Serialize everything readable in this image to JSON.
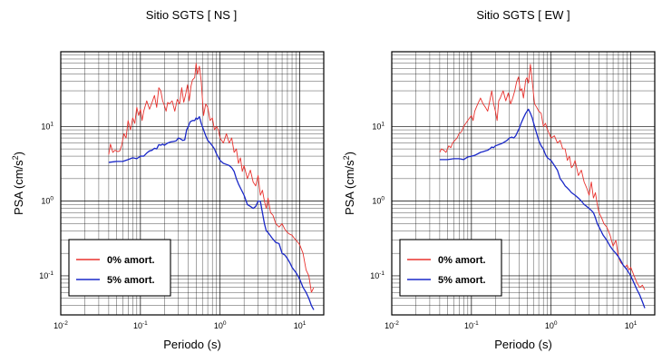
{
  "chart_data": [
    {
      "type": "line",
      "title": "Sitio SGTS [ NS ]",
      "xlabel": "Periodo (s)",
      "ylabel": "PSA (cm/s",
      "ylabel_sup": "2",
      "ylabel_end": ")",
      "xscale": "log",
      "yscale": "log",
      "xlim": [
        0.01,
        20
      ],
      "ylim": [
        0.03,
        100
      ],
      "grid": true,
      "legend_position": "bottom-left",
      "x_ticks": [
        {
          "base": "10",
          "exp": "-2",
          "value": 0.01
        },
        {
          "base": "10",
          "exp": "-1",
          "value": 0.1
        },
        {
          "base": "10",
          "exp": "0",
          "value": 1
        },
        {
          "base": "10",
          "exp": "1",
          "value": 10
        }
      ],
      "y_ticks": [
        {
          "base": "10",
          "exp": "-1",
          "value": 0.1
        },
        {
          "base": "10",
          "exp": "0",
          "value": 1
        },
        {
          "base": "10",
          "exp": "1",
          "value": 10
        }
      ],
      "series": [
        {
          "name": "0% amort.",
          "color": "#e8322e",
          "x": [
            0.04,
            0.042,
            0.045,
            0.048,
            0.052,
            0.055,
            0.058,
            0.062,
            0.066,
            0.07,
            0.075,
            0.08,
            0.085,
            0.09,
            0.095,
            0.1,
            0.105,
            0.11,
            0.12,
            0.13,
            0.14,
            0.15,
            0.16,
            0.17,
            0.18,
            0.19,
            0.2,
            0.21,
            0.22,
            0.23,
            0.25,
            0.27,
            0.29,
            0.31,
            0.33,
            0.35,
            0.37,
            0.39,
            0.41,
            0.43,
            0.45,
            0.48,
            0.5,
            0.52,
            0.55,
            0.58,
            0.62,
            0.66,
            0.7,
            0.75,
            0.8,
            0.85,
            0.9,
            0.95,
            1.0,
            1.1,
            1.2,
            1.3,
            1.4,
            1.5,
            1.6,
            1.7,
            1.8,
            1.9,
            2.0,
            2.2,
            2.4,
            2.6,
            2.8,
            3.0,
            3.2,
            3.4,
            3.6,
            3.8,
            4.0,
            4.3,
            4.6,
            5.0,
            5.5,
            6.0,
            6.5,
            7.0,
            7.5,
            8.0,
            8.5,
            9.0,
            9.5,
            10.0,
            11.0,
            12.0,
            13.0,
            14.0,
            15.0
          ],
          "y": [
            4.2,
            5.8,
            4.5,
            4.8,
            4.6,
            4.7,
            5.5,
            8.0,
            7.0,
            12.0,
            9.0,
            13.0,
            11.0,
            18.0,
            14.0,
            17.0,
            12.0,
            16.0,
            22.0,
            17.0,
            21.0,
            26.0,
            18.0,
            33.0,
            30.0,
            22.0,
            19.0,
            16.0,
            21.0,
            20.0,
            22.0,
            16.0,
            23.0,
            20.0,
            33.0,
            21.0,
            27.0,
            36.0,
            22.0,
            34.0,
            42.0,
            45.0,
            70.0,
            50.0,
            64.0,
            40.0,
            14.0,
            20.0,
            18.0,
            12.0,
            13.0,
            9.0,
            10.0,
            9.0,
            7.0,
            6.0,
            8.0,
            6.0,
            7.0,
            4.5,
            5.0,
            3.2,
            3.8,
            2.5,
            3.0,
            2.0,
            2.6,
            1.8,
            1.6,
            2.2,
            1.2,
            1.4,
            1.0,
            0.8,
            1.1,
            0.7,
            0.65,
            0.5,
            0.45,
            0.5,
            0.42,
            0.38,
            0.36,
            0.35,
            0.32,
            0.3,
            0.28,
            0.26,
            0.2,
            0.12,
            0.1,
            0.06,
            0.07
          ]
        },
        {
          "name": "5% amort.",
          "color": "#1a28c8",
          "x": [
            0.04,
            0.05,
            0.06,
            0.07,
            0.08,
            0.09,
            0.1,
            0.11,
            0.12,
            0.13,
            0.14,
            0.15,
            0.16,
            0.17,
            0.18,
            0.19,
            0.2,
            0.22,
            0.24,
            0.26,
            0.28,
            0.3,
            0.32,
            0.34,
            0.36,
            0.38,
            0.4,
            0.42,
            0.45,
            0.48,
            0.5,
            0.52,
            0.55,
            0.58,
            0.62,
            0.66,
            0.7,
            0.75,
            0.8,
            0.85,
            0.9,
            1.0,
            1.1,
            1.2,
            1.3,
            1.4,
            1.5,
            1.6,
            1.7,
            1.8,
            2.0,
            2.2,
            2.4,
            2.6,
            2.8,
            3.0,
            3.2,
            3.4,
            3.6,
            3.8,
            4.0,
            4.5,
            5.0,
            5.5,
            6.0,
            6.5,
            7.0,
            7.5,
            8.0,
            9.0,
            10.0,
            11.0,
            12.0,
            13.0,
            14.0,
            15.0
          ],
          "y": [
            3.3,
            3.4,
            3.4,
            3.6,
            3.8,
            3.7,
            4.0,
            4.0,
            4.4,
            4.7,
            4.8,
            5.1,
            5.0,
            5.7,
            5.6,
            5.8,
            5.6,
            6.0,
            6.2,
            6.3,
            6.4,
            7.0,
            6.8,
            6.5,
            6.6,
            9.0,
            10.0,
            11.5,
            12.0,
            12.0,
            13.0,
            12.5,
            13.5,
            11.0,
            9.0,
            7.5,
            6.5,
            6.0,
            5.5,
            5.0,
            4.3,
            3.5,
            3.2,
            3.1,
            3.0,
            2.8,
            2.5,
            2.0,
            1.7,
            1.5,
            1.2,
            0.9,
            0.85,
            0.8,
            0.85,
            1.0,
            1.0,
            0.7,
            0.5,
            0.4,
            0.38,
            0.32,
            0.28,
            0.27,
            0.2,
            0.19,
            0.17,
            0.15,
            0.13,
            0.11,
            0.09,
            0.07,
            0.06,
            0.05,
            0.04,
            0.035
          ]
        }
      ]
    },
    {
      "type": "line",
      "title": "Sitio SGTS [ EW ]",
      "xlabel": "Periodo (s)",
      "ylabel": "PSA (cm/s",
      "ylabel_sup": "2",
      "ylabel_end": ")",
      "xscale": "log",
      "yscale": "log",
      "xlim": [
        0.01,
        20
      ],
      "ylim": [
        0.03,
        100
      ],
      "grid": true,
      "legend_position": "bottom-left",
      "x_ticks": [
        {
          "base": "10",
          "exp": "-2",
          "value": 0.01
        },
        {
          "base": "10",
          "exp": "-1",
          "value": 0.1
        },
        {
          "base": "10",
          "exp": "0",
          "value": 1
        },
        {
          "base": "10",
          "exp": "1",
          "value": 10
        }
      ],
      "y_ticks": [
        {
          "base": "10",
          "exp": "-1",
          "value": 0.1
        },
        {
          "base": "10",
          "exp": "0",
          "value": 1
        },
        {
          "base": "10",
          "exp": "1",
          "value": 10
        }
      ],
      "series": [
        {
          "name": "0% amort.",
          "color": "#e8322e",
          "x": [
            0.04,
            0.042,
            0.045,
            0.048,
            0.052,
            0.055,
            0.058,
            0.062,
            0.066,
            0.07,
            0.075,
            0.08,
            0.085,
            0.09,
            0.095,
            0.1,
            0.105,
            0.11,
            0.12,
            0.13,
            0.14,
            0.15,
            0.16,
            0.17,
            0.18,
            0.19,
            0.2,
            0.21,
            0.22,
            0.23,
            0.25,
            0.27,
            0.29,
            0.31,
            0.33,
            0.35,
            0.37,
            0.39,
            0.41,
            0.43,
            0.45,
            0.48,
            0.5,
            0.52,
            0.55,
            0.58,
            0.62,
            0.66,
            0.7,
            0.75,
            0.8,
            0.85,
            0.9,
            0.95,
            1.0,
            1.1,
            1.2,
            1.3,
            1.4,
            1.5,
            1.6,
            1.7,
            1.8,
            1.9,
            2.0,
            2.2,
            2.4,
            2.6,
            2.8,
            3.0,
            3.2,
            3.4,
            3.6,
            3.8,
            4.0,
            4.3,
            4.6,
            5.0,
            5.5,
            6.0,
            6.5,
            7.0,
            7.5,
            8.0,
            8.5,
            9.0,
            9.5,
            10.0,
            11.0,
            12.0,
            13.0,
            14.0,
            15.0
          ],
          "y": [
            4.5,
            5.0,
            4.8,
            4.5,
            5.5,
            5.2,
            6.0,
            6.5,
            7.0,
            8.0,
            8.5,
            10.0,
            11.0,
            12.0,
            13.0,
            14.0,
            12.0,
            16.0,
            20.0,
            24.0,
            20.0,
            18.0,
            16.0,
            22.0,
            30.0,
            20.0,
            16.0,
            12.0,
            22.0,
            24.0,
            30.0,
            22.0,
            28.0,
            20.0,
            24.0,
            30.0,
            40.0,
            46.0,
            30.0,
            32.0,
            24.0,
            42.0,
            45.0,
            38.0,
            68.0,
            40.0,
            20.0,
            18.0,
            16.0,
            15.0,
            10.0,
            11.0,
            9.0,
            8.0,
            7.0,
            7.5,
            6.0,
            6.5,
            5.0,
            5.0,
            3.5,
            4.0,
            2.8,
            3.0,
            3.5,
            2.2,
            2.6,
            1.8,
            1.5,
            1.2,
            1.8,
            1.1,
            1.3,
            0.9,
            0.7,
            0.6,
            0.5,
            0.45,
            0.35,
            0.25,
            0.3,
            0.18,
            0.15,
            0.14,
            0.13,
            0.14,
            0.12,
            0.13,
            0.1,
            0.08,
            0.07,
            0.075,
            0.065
          ]
        },
        {
          "name": "5% amort.",
          "color": "#1a28c8",
          "x": [
            0.04,
            0.05,
            0.06,
            0.07,
            0.08,
            0.09,
            0.1,
            0.11,
            0.12,
            0.13,
            0.14,
            0.15,
            0.16,
            0.17,
            0.18,
            0.19,
            0.2,
            0.22,
            0.24,
            0.26,
            0.28,
            0.3,
            0.32,
            0.34,
            0.36,
            0.38,
            0.4,
            0.42,
            0.45,
            0.48,
            0.5,
            0.52,
            0.55,
            0.58,
            0.62,
            0.66,
            0.7,
            0.75,
            0.8,
            0.85,
            0.9,
            1.0,
            1.1,
            1.2,
            1.3,
            1.4,
            1.5,
            1.6,
            1.7,
            1.8,
            2.0,
            2.2,
            2.4,
            2.6,
            2.8,
            3.0,
            3.2,
            3.4,
            3.6,
            3.8,
            4.0,
            4.5,
            5.0,
            5.5,
            6.0,
            6.5,
            7.0,
            7.5,
            8.0,
            9.0,
            10.0,
            11.0,
            12.0,
            13.0,
            14.0,
            15.0
          ],
          "y": [
            3.6,
            3.6,
            3.7,
            3.7,
            3.6,
            3.9,
            4.0,
            4.1,
            4.3,
            4.5,
            4.6,
            4.7,
            4.8,
            5.0,
            5.3,
            5.2,
            5.5,
            5.7,
            5.9,
            6.2,
            6.5,
            7.0,
            7.2,
            7.0,
            7.5,
            8.5,
            9.5,
            11.0,
            13.0,
            15.0,
            16.0,
            17.0,
            15.0,
            13.0,
            10.0,
            8.0,
            6.5,
            5.5,
            5.0,
            4.2,
            3.8,
            3.5,
            3.0,
            2.6,
            2.0,
            1.8,
            1.6,
            1.5,
            1.4,
            1.3,
            1.2,
            1.1,
            1.0,
            0.9,
            0.85,
            0.8,
            0.75,
            0.7,
            0.6,
            0.5,
            0.45,
            0.35,
            0.3,
            0.25,
            0.22,
            0.2,
            0.18,
            0.16,
            0.14,
            0.12,
            0.1,
            0.08,
            0.065,
            0.055,
            0.045,
            0.037
          ]
        }
      ]
    }
  ]
}
